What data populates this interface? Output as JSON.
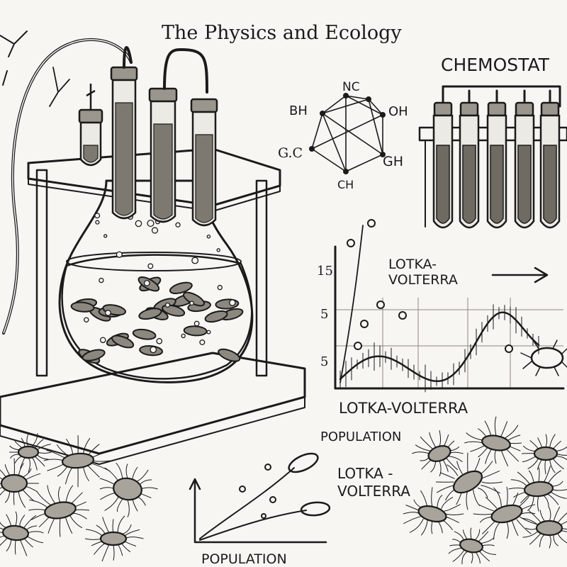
{
  "title": "The Physics and Ecology",
  "chemostat": {
    "label": "CHEMOSTAT",
    "tube_count": 5
  },
  "molecule": {
    "labels": [
      "NC",
      "BH",
      "OH",
      "G.C",
      "GH",
      "CH"
    ]
  },
  "graph_main": {
    "label_inside": [
      "LOTKA-",
      "VOLTERRA"
    ],
    "label_below": "LOTKA-VOLTERRA",
    "tick_labels": [
      "15",
      "5",
      "5"
    ]
  },
  "graph_lower": {
    "top_label": "POPULATION",
    "side_label": [
      "LOTKA -",
      "VOLTERRA"
    ],
    "bottom_label": "POPULATION"
  },
  "colors": {
    "ink": "#1b1b1b",
    "paper": "#f7f6f2",
    "wood": "#d9d4c8",
    "glass": "#eceae4",
    "culture": "#8c8880"
  }
}
